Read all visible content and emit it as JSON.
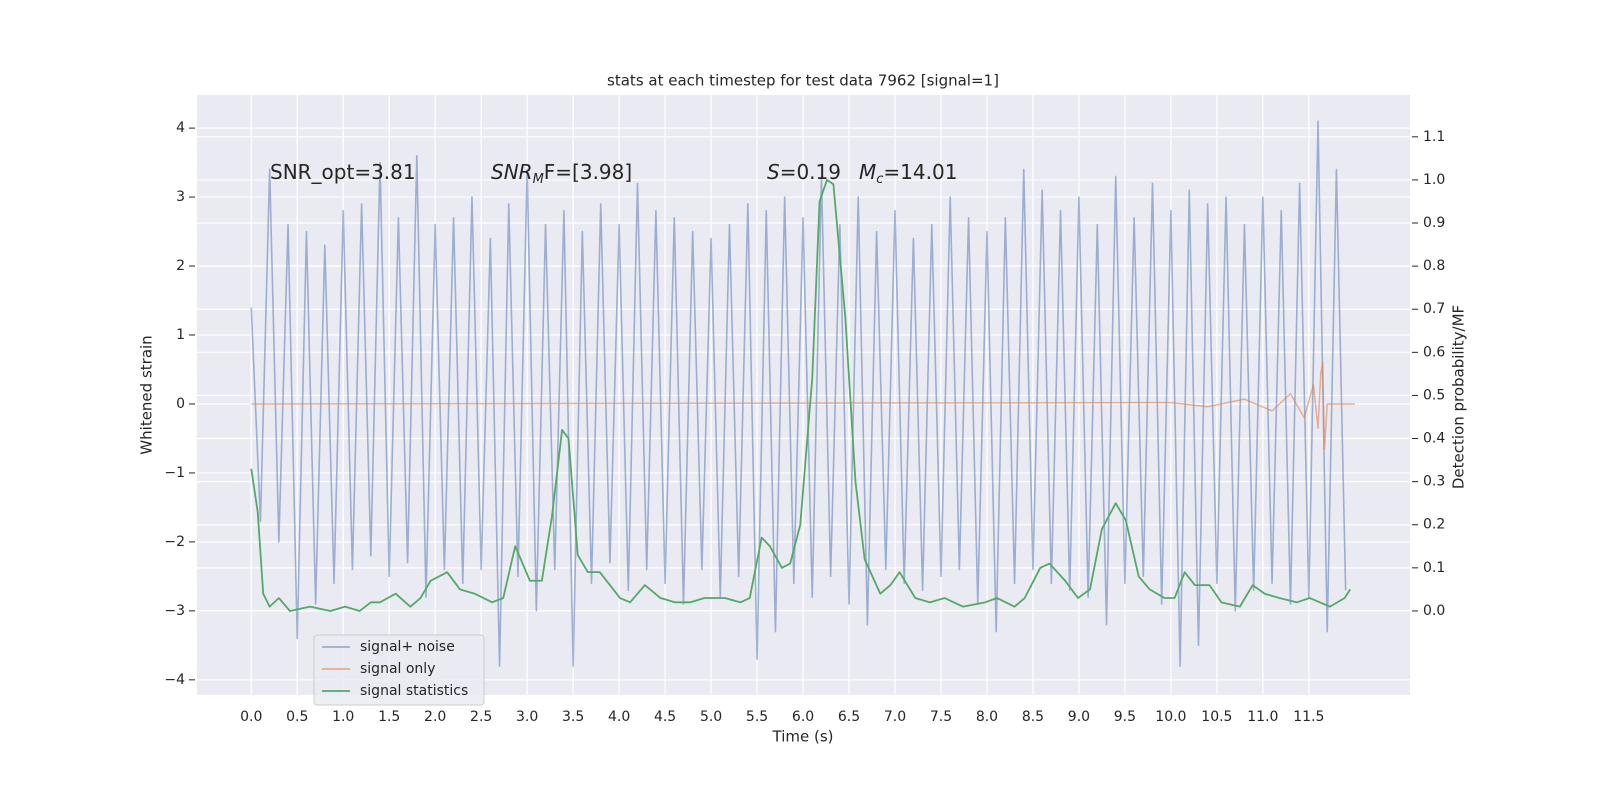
{
  "chart_data": {
    "type": "line",
    "title": "stats at each timestep for test data 7962 [signal=1]",
    "xlabel": "Time (s)",
    "ylabel": "Whitened strain",
    "y2label": "Detection probability/MF",
    "annotations": [
      {
        "text": "SNR_opt=3.81"
      },
      {
        "italic": "SNR",
        "sub": "M",
        "text": "F=[3.98]"
      },
      {
        "italic": "S",
        "text": "=0.19"
      },
      {
        "italic": "M",
        "sub": "c",
        "text": "=14.01"
      }
    ],
    "xlim": [
      -0.59,
      12.6
    ],
    "ylim": [
      -4.22,
      4.48
    ],
    "y2lim": [
      -0.195,
      1.197
    ],
    "xticks": [
      {
        "value": 0,
        "label": "0.0"
      },
      0.5,
      {
        "value": 1,
        "label": "1.0"
      },
      1.5,
      {
        "value": 2,
        "label": "2.0"
      },
      2.5,
      {
        "value": 3,
        "label": "3.0"
      },
      3.5,
      {
        "value": 4,
        "label": "4.0"
      },
      4.5,
      {
        "value": 5,
        "label": "5.0"
      },
      5.5,
      {
        "value": 6,
        "label": "6.0"
      },
      6.5,
      {
        "value": 7,
        "label": "7.0"
      },
      7.5,
      {
        "value": 8,
        "label": "8.0"
      },
      8.5,
      {
        "value": 9,
        "label": "9.0"
      },
      9.5,
      {
        "value": 10,
        "label": "10.0"
      },
      10.5,
      {
        "value": 11,
        "label": "11.0"
      },
      11.5
    ],
    "yticks": [
      {
        "value": -4,
        "label": "−4"
      },
      {
        "value": -3,
        "label": "−3"
      },
      {
        "value": -2,
        "label": "−2"
      },
      {
        "value": -1,
        "label": "−1"
      },
      0,
      1,
      2,
      3,
      4
    ],
    "y2ticks": [
      {
        "value": 0,
        "label": "0.0"
      },
      0.1,
      0.2,
      0.3,
      0.4,
      0.5,
      0.6,
      0.7,
      0.8,
      0.9,
      {
        "value": 1,
        "label": "1.0"
      },
      1.1
    ],
    "grid": true,
    "legend_loc": "lower left",
    "series": [
      {
        "name": "signal+ noise",
        "color": "#4c72b0",
        "opacity": 0.5,
        "x": [
          0.0,
          0.1,
          0.2,
          0.3,
          0.4,
          0.5,
          0.6,
          0.7,
          0.8,
          0.9,
          1.0,
          1.1,
          1.2,
          1.3,
          1.4,
          1.5,
          1.6,
          1.7,
          1.8,
          1.9,
          2.0,
          2.1,
          2.2,
          2.3,
          2.4,
          2.5,
          2.6,
          2.7,
          2.8,
          2.9,
          3.0,
          3.1,
          3.2,
          3.3,
          3.4,
          3.5,
          3.6,
          3.7,
          3.8,
          3.9,
          4.0,
          4.1,
          4.2,
          4.3,
          4.4,
          4.5,
          4.6,
          4.7,
          4.8,
          4.9,
          5.0,
          5.1,
          5.2,
          5.3,
          5.4,
          5.5,
          5.6,
          5.7,
          5.8,
          5.9,
          6.0,
          6.1,
          6.2,
          6.3,
          6.4,
          6.5,
          6.6,
          6.7,
          6.8,
          6.9,
          7.0,
          7.1,
          7.2,
          7.3,
          7.4,
          7.5,
          7.6,
          7.7,
          7.8,
          7.9,
          8.0,
          8.1,
          8.2,
          8.3,
          8.4,
          8.5,
          8.6,
          8.7,
          8.8,
          8.9,
          9.0,
          9.1,
          9.2,
          9.3,
          9.4,
          9.5,
          9.6,
          9.7,
          9.8,
          9.9,
          10.0,
          10.1,
          10.2,
          10.3,
          10.4,
          10.5,
          10.6,
          10.7,
          10.8,
          10.9,
          11.0,
          11.1,
          11.2,
          11.3,
          11.4,
          11.5,
          11.6,
          11.7,
          11.8,
          11.9
        ],
        "values": [
          1.4,
          -1.7,
          3.4,
          -2.0,
          2.6,
          -3.4,
          2.5,
          -2.9,
          2.3,
          -2.6,
          2.8,
          -2.4,
          2.9,
          -2.2,
          3.5,
          -2.5,
          2.7,
          -2.3,
          3.6,
          -2.8,
          2.6,
          -2.4,
          2.7,
          -2.6,
          3.0,
          -2.4,
          2.4,
          -3.8,
          2.9,
          -2.5,
          3.4,
          -3.0,
          2.6,
          -2.4,
          2.8,
          -3.8,
          2.5,
          -2.6,
          2.9,
          -2.3,
          2.6,
          -2.7,
          3.2,
          -2.4,
          2.8,
          -2.6,
          2.7,
          -2.9,
          2.5,
          -2.4,
          2.4,
          -2.8,
          2.6,
          -2.5,
          2.9,
          -3.7,
          2.8,
          -3.3,
          3.0,
          -2.6,
          2.7,
          -2.8,
          3.3,
          -2.5,
          2.6,
          -2.9,
          3.0,
          -3.2,
          2.5,
          -2.4,
          2.8,
          -2.6,
          2.4,
          -2.7,
          2.6,
          -2.5,
          3.0,
          -2.4,
          2.7,
          -2.9,
          2.5,
          -3.3,
          2.7,
          -2.6,
          3.4,
          -2.4,
          3.1,
          -2.6,
          2.8,
          -2.7,
          3.0,
          -2.8,
          2.6,
          -3.2,
          3.3,
          -2.6,
          2.7,
          -2.5,
          3.2,
          -2.9,
          2.8,
          -3.8,
          3.1,
          -3.5,
          2.9,
          -2.6,
          3.0,
          -3.0,
          2.6,
          -2.7,
          3.0,
          -2.6,
          2.8,
          -2.9,
          3.2,
          -2.8,
          4.1,
          -3.3,
          3.4,
          -2.7
        ]
      },
      {
        "name": "signal only",
        "color": "#dd8452",
        "opacity": 0.6,
        "x": [
          0.0,
          10.0,
          10.4,
          10.8,
          11.1,
          11.3,
          11.45,
          11.55,
          11.6,
          11.63,
          11.65,
          11.67,
          11.7,
          12.0
        ],
        "values": [
          0,
          0.02,
          -0.04,
          0.07,
          -0.1,
          0.15,
          -0.2,
          0.28,
          -0.35,
          0.45,
          0.6,
          -0.65,
          0,
          0
        ]
      },
      {
        "name": "signal statistics",
        "color": "#55a868",
        "opacity": 1,
        "axis": "y2",
        "x": [
          0,
          0.07,
          0.13,
          0.2,
          0.3,
          0.42,
          0.64,
          0.86,
          1.02,
          1.18,
          1.3,
          1.4,
          1.57,
          1.73,
          1.84,
          1.95,
          2.13,
          2.27,
          2.43,
          2.62,
          2.74,
          2.87,
          3.03,
          3.16,
          3.27,
          3.38,
          3.45,
          3.55,
          3.66,
          3.79,
          3.9,
          4.01,
          4.12,
          4.28,
          4.45,
          4.61,
          4.77,
          4.93,
          5.15,
          5.32,
          5.42,
          5.55,
          5.64,
          5.77,
          5.86,
          5.97,
          6.1,
          6.18,
          6.26,
          6.33,
          6.46,
          6.57,
          6.67,
          6.84,
          6.95,
          7.05,
          7.22,
          7.38,
          7.54,
          7.74,
          7.98,
          8.11,
          8.3,
          8.41,
          8.58,
          8.68,
          8.85,
          8.99,
          9.12,
          9.25,
          9.4,
          9.51,
          9.65,
          9.77,
          9.93,
          10.04,
          10.15,
          10.26,
          10.42,
          10.55,
          10.75,
          10.89,
          11.02,
          11.18,
          11.37,
          11.51,
          11.73,
          11.89,
          11.95
        ],
        "values": [
          0.33,
          0.23,
          0.04,
          0.01,
          0.03,
          0.0,
          0.01,
          0.0,
          0.01,
          0.0,
          0.02,
          0.02,
          0.04,
          0.01,
          0.03,
          0.07,
          0.09,
          0.05,
          0.04,
          0.02,
          0.03,
          0.15,
          0.07,
          0.07,
          0.22,
          0.42,
          0.4,
          0.13,
          0.09,
          0.09,
          0.06,
          0.03,
          0.02,
          0.06,
          0.03,
          0.02,
          0.02,
          0.03,
          0.03,
          0.02,
          0.03,
          0.17,
          0.15,
          0.1,
          0.11,
          0.2,
          0.54,
          0.95,
          1.0,
          0.99,
          0.68,
          0.3,
          0.12,
          0.04,
          0.06,
          0.09,
          0.03,
          0.02,
          0.03,
          0.01,
          0.02,
          0.03,
          0.01,
          0.03,
          0.1,
          0.11,
          0.07,
          0.03,
          0.05,
          0.19,
          0.25,
          0.21,
          0.08,
          0.05,
          0.03,
          0.03,
          0.09,
          0.06,
          0.06,
          0.02,
          0.01,
          0.06,
          0.04,
          0.03,
          0.02,
          0.03,
          0.01,
          0.03,
          0.05
        ]
      }
    ]
  }
}
